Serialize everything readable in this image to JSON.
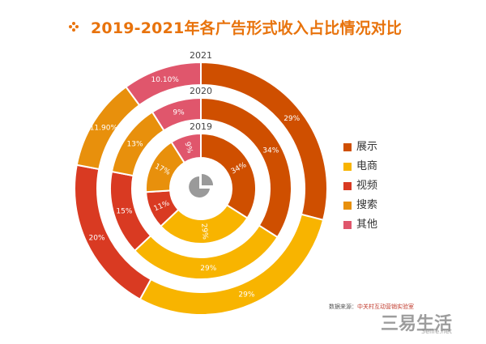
{
  "title": "2019-2021年各广告形式收入占比情况对比",
  "chart_data": {
    "type": "pie",
    "subtype": "nested-donut",
    "categories": [
      "展示",
      "电商",
      "视频",
      "搜索",
      "其他"
    ],
    "colors": [
      "#cf4f00",
      "#f8b400",
      "#d93a22",
      "#e8900c",
      "#e0566c"
    ],
    "series": [
      {
        "name": "2019",
        "values": [
          34,
          29,
          11,
          17,
          9
        ],
        "labels": [
          "34%",
          "29%",
          "11%",
          "17%",
          "9%"
        ]
      },
      {
        "name": "2020",
        "values": [
          34,
          29,
          15,
          13,
          9
        ],
        "labels": [
          "34%",
          "29%",
          "15%",
          "13%",
          "9%"
        ]
      },
      {
        "name": "2021",
        "values": [
          29,
          29,
          20,
          11.9,
          10.1
        ],
        "labels": [
          "29%",
          "29%",
          "20%",
          "11.90%",
          "10.10%"
        ]
      }
    ],
    "legend_position": "right"
  },
  "legend": [
    {
      "label": "展示",
      "color": "#cf4f00"
    },
    {
      "label": "电商",
      "color": "#f8b400"
    },
    {
      "label": "视频",
      "color": "#d93a22"
    },
    {
      "label": "搜索",
      "color": "#e8900c"
    },
    {
      "label": "其他",
      "color": "#e0566c"
    }
  ],
  "source": {
    "label": "数据来源：",
    "text": "中关村互动营销实验室"
  },
  "watermark": {
    "main": "三易生活",
    "sub": "3elife.net"
  }
}
